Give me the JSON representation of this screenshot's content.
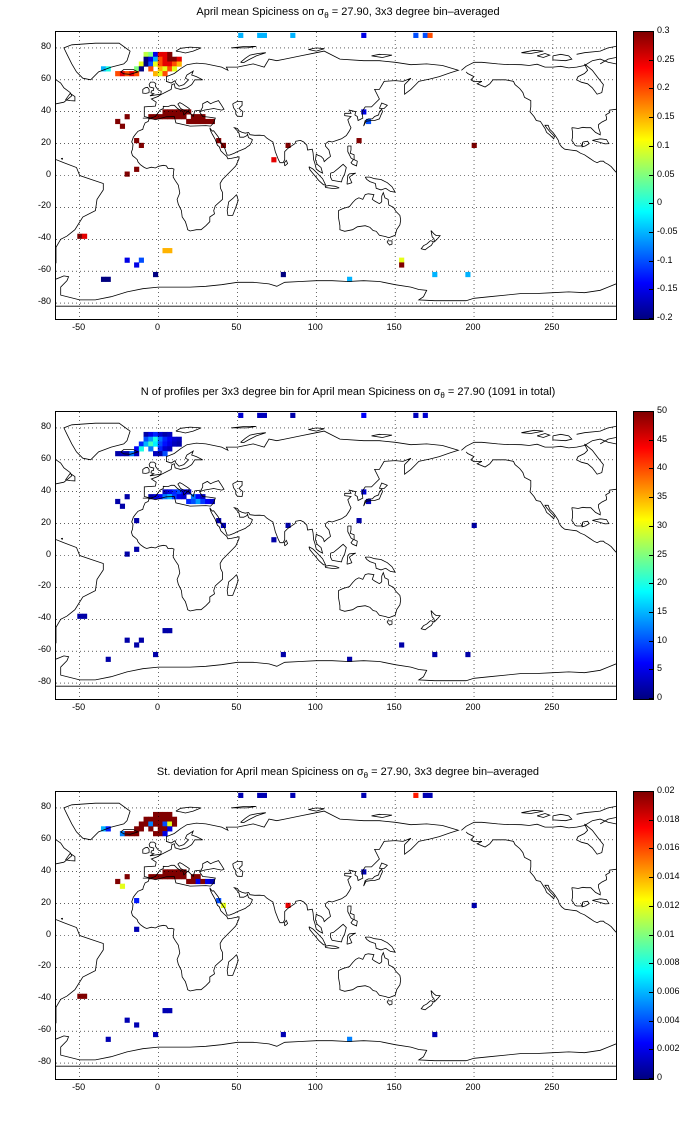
{
  "panels": [
    {
      "title_pre": "April mean Spiciness on σ",
      "title_sub": "θ",
      "title_post": " = 27.90, 3x3 degree bin–averaged",
      "cbar_ticks": [
        "0.3",
        "0.25",
        "0.2",
        "0.15",
        "0.1",
        "0.05",
        "0",
        "-0.05",
        "-0.1",
        "-0.15",
        "-0.2"
      ],
      "cmin": -0.2,
      "cmax": 0.3
    },
    {
      "title_pre": "N of profiles per 3x3 degree bin for April mean Spiciness on σ",
      "title_sub": "θ",
      "title_post": " = 27.90 (1091 in total)",
      "cbar_ticks": [
        "50",
        "45",
        "40",
        "35",
        "30",
        "25",
        "20",
        "15",
        "10",
        "5",
        "0"
      ],
      "cmin": 0,
      "cmax": 50
    },
    {
      "title_pre": "St. deviation for April mean Spiciness on σ",
      "title_sub": "θ",
      "title_post": " = 27.90, 3x3 degree bin–averaged",
      "cbar_ticks": [
        "0.02",
        "0.018",
        "0.016",
        "0.014",
        "0.012",
        "0.01",
        "0.008",
        "0.006",
        "0.004",
        "0.002",
        "0"
      ],
      "cmin": 0,
      "cmax": 0.02
    }
  ],
  "x_ticks": [
    "-50",
    "0",
    "50",
    "100",
    "150",
    "200",
    "250"
  ],
  "y_ticks": [
    "80",
    "60",
    "40",
    "20",
    "0",
    "-20",
    "-40",
    "-60",
    "-80"
  ],
  "map_data": {
    "x_range": [
      -65,
      290
    ],
    "y_range": [
      -90,
      90
    ],
    "panels": [
      [
        [
          -8,
          76,
          0.08
        ],
        [
          -5,
          76,
          0.05
        ],
        [
          -2,
          76,
          -0.15
        ],
        [
          1,
          76,
          0.25
        ],
        [
          4,
          76,
          0.25
        ],
        [
          7,
          76,
          0.3
        ],
        [
          -8,
          73,
          -0.2
        ],
        [
          -5,
          73,
          -0.15
        ],
        [
          -2,
          73,
          -0.05
        ],
        [
          1,
          73,
          0.2
        ],
        [
          4,
          73,
          0.25
        ],
        [
          7,
          73,
          0.3
        ],
        [
          10,
          73,
          0.3
        ],
        [
          13,
          73,
          0.25
        ],
        [
          -11,
          70,
          0.1
        ],
        [
          -8,
          70,
          -0.2
        ],
        [
          -5,
          70,
          -0.1
        ],
        [
          -2,
          70,
          0.1
        ],
        [
          1,
          70,
          0.2
        ],
        [
          4,
          70,
          0.25
        ],
        [
          7,
          70,
          0.25
        ],
        [
          10,
          70,
          0.2
        ],
        [
          13,
          70,
          0.15
        ],
        [
          -14,
          67,
          0.05
        ],
        [
          -11,
          67,
          -0.2
        ],
        [
          -5,
          67,
          0.2
        ],
        [
          1,
          67,
          0.15
        ],
        [
          4,
          67,
          0.1
        ],
        [
          7,
          67,
          0.2
        ],
        [
          10,
          67,
          0.1
        ],
        [
          -2,
          64,
          0.15
        ],
        [
          1,
          64,
          0.1
        ],
        [
          4,
          64,
          0.2
        ],
        [
          -26,
          64,
          0.2
        ],
        [
          -23,
          64,
          0.25
        ],
        [
          -20,
          64,
          0.2
        ],
        [
          -17,
          64,
          0.25
        ],
        [
          -14,
          64,
          0.2
        ],
        [
          -35,
          67,
          -0.05
        ],
        [
          -32,
          67,
          0.0
        ],
        [
          4,
          40,
          0.3
        ],
        [
          7,
          40,
          0.3
        ],
        [
          10,
          40,
          0.3
        ],
        [
          13,
          40,
          0.3
        ],
        [
          16,
          40,
          0.3
        ],
        [
          19,
          40,
          0.3
        ],
        [
          -5,
          37,
          0.3
        ],
        [
          -2,
          37,
          0.3
        ],
        [
          1,
          37,
          0.3
        ],
        [
          4,
          37,
          0.3
        ],
        [
          7,
          37,
          0.3
        ],
        [
          10,
          37,
          0.3
        ],
        [
          13,
          37,
          0.3
        ],
        [
          16,
          37,
          0.3
        ],
        [
          22,
          37,
          0.3
        ],
        [
          25,
          37,
          0.3
        ],
        [
          28,
          37,
          0.3
        ],
        [
          19,
          34,
          0.3
        ],
        [
          22,
          34,
          0.3
        ],
        [
          25,
          34,
          0.3
        ],
        [
          28,
          34,
          0.3
        ],
        [
          31,
          34,
          0.3
        ],
        [
          34,
          34,
          0.3
        ],
        [
          -26,
          34,
          0.3
        ],
        [
          -20,
          37,
          0.3
        ],
        [
          -23,
          31,
          0.3
        ],
        [
          38,
          22,
          0.3
        ],
        [
          41,
          19,
          0.3
        ],
        [
          -14,
          22,
          0.3
        ],
        [
          -14,
          4,
          0.3
        ],
        [
          -20,
          1,
          0.3
        ],
        [
          -11,
          19,
          0.3
        ],
        [
          73,
          10,
          0.25
        ],
        [
          82,
          19,
          0.3
        ],
        [
          130,
          40,
          -0.15
        ],
        [
          133,
          34,
          -0.1
        ],
        [
          127,
          22,
          0.3
        ],
        [
          200,
          19,
          0.3
        ],
        [
          52,
          88,
          -0.05
        ],
        [
          64,
          88,
          -0.05
        ],
        [
          67,
          88,
          -0.05
        ],
        [
          85,
          88,
          -0.05
        ],
        [
          130,
          88,
          -0.15
        ],
        [
          163,
          88,
          -0.1
        ],
        [
          169,
          88,
          -0.1
        ],
        [
          172,
          88,
          0.2
        ],
        [
          -50,
          -38,
          0.3
        ],
        [
          -47,
          -38,
          0.25
        ],
        [
          4,
          -47,
          0.15
        ],
        [
          7,
          -47,
          0.15
        ],
        [
          -20,
          -53,
          -0.15
        ],
        [
          -11,
          -53,
          -0.1
        ],
        [
          -14,
          -56,
          -0.15
        ],
        [
          -32,
          -65,
          -0.2
        ],
        [
          -2,
          -62,
          -0.2
        ],
        [
          79,
          -62,
          -0.2
        ],
        [
          154,
          -53,
          0.1
        ],
        [
          154,
          -56,
          0.3
        ],
        [
          121,
          -65,
          -0.05
        ],
        [
          175,
          -62,
          -0.05
        ],
        [
          196,
          -62,
          -0.05
        ],
        [
          -35,
          -65,
          -0.2
        ]
      ],
      [
        [
          -8,
          76,
          2
        ],
        [
          -5,
          76,
          5
        ],
        [
          -2,
          76,
          8
        ],
        [
          1,
          76,
          4
        ],
        [
          4,
          76,
          2
        ],
        [
          7,
          76,
          3
        ],
        [
          -8,
          73,
          10
        ],
        [
          -5,
          73,
          14
        ],
        [
          -2,
          73,
          20
        ],
        [
          1,
          73,
          12
        ],
        [
          4,
          73,
          8
        ],
        [
          7,
          73,
          6
        ],
        [
          10,
          73,
          4
        ],
        [
          13,
          73,
          3
        ],
        [
          -11,
          70,
          8
        ],
        [
          -8,
          70,
          15
        ],
        [
          -5,
          70,
          22
        ],
        [
          -2,
          70,
          18
        ],
        [
          1,
          70,
          10
        ],
        [
          4,
          70,
          7
        ],
        [
          7,
          70,
          5
        ],
        [
          10,
          70,
          3
        ],
        [
          13,
          70,
          2
        ],
        [
          -14,
          67,
          6
        ],
        [
          -11,
          67,
          20
        ],
        [
          -5,
          67,
          12
        ],
        [
          1,
          67,
          8
        ],
        [
          4,
          67,
          4
        ],
        [
          7,
          67,
          3
        ],
        [
          -2,
          64,
          3
        ],
        [
          1,
          64,
          2
        ],
        [
          4,
          64,
          10
        ],
        [
          -26,
          64,
          2
        ],
        [
          -23,
          64,
          3
        ],
        [
          -20,
          64,
          2
        ],
        [
          -17,
          64,
          12
        ],
        [
          -14,
          64,
          3
        ],
        [
          4,
          40,
          3
        ],
        [
          7,
          40,
          5
        ],
        [
          10,
          40,
          8
        ],
        [
          13,
          40,
          10
        ],
        [
          16,
          40,
          6
        ],
        [
          19,
          40,
          3
        ],
        [
          -5,
          37,
          2
        ],
        [
          -2,
          37,
          4
        ],
        [
          1,
          37,
          6
        ],
        [
          4,
          37,
          12
        ],
        [
          7,
          37,
          15
        ],
        [
          10,
          37,
          9
        ],
        [
          13,
          37,
          5
        ],
        [
          16,
          37,
          4
        ],
        [
          22,
          37,
          12
        ],
        [
          25,
          37,
          6
        ],
        [
          28,
          37,
          3
        ],
        [
          19,
          34,
          8
        ],
        [
          22,
          34,
          10
        ],
        [
          25,
          34,
          14
        ],
        [
          28,
          34,
          9
        ],
        [
          31,
          34,
          6
        ],
        [
          34,
          34,
          4
        ],
        [
          -26,
          34,
          2
        ],
        [
          -20,
          37,
          2
        ],
        [
          -23,
          31,
          2
        ],
        [
          38,
          22,
          2
        ],
        [
          41,
          19,
          3
        ],
        [
          -14,
          22,
          2
        ],
        [
          -14,
          4,
          2
        ],
        [
          -20,
          1,
          2
        ],
        [
          73,
          10,
          2
        ],
        [
          82,
          19,
          2
        ],
        [
          130,
          40,
          4
        ],
        [
          133,
          34,
          3
        ],
        [
          127,
          22,
          2
        ],
        [
          200,
          19,
          2
        ],
        [
          52,
          88,
          4
        ],
        [
          64,
          88,
          3
        ],
        [
          67,
          88,
          3
        ],
        [
          85,
          88,
          2
        ],
        [
          130,
          88,
          6
        ],
        [
          163,
          88,
          3
        ],
        [
          169,
          88,
          4
        ],
        [
          -50,
          -38,
          2
        ],
        [
          -47,
          -38,
          2
        ],
        [
          4,
          -47,
          2
        ],
        [
          7,
          -47,
          2
        ],
        [
          -20,
          -53,
          2
        ],
        [
          -11,
          -53,
          2
        ],
        [
          -14,
          -56,
          2
        ],
        [
          -32,
          -65,
          2
        ],
        [
          -2,
          -62,
          2
        ],
        [
          79,
          -62,
          2
        ],
        [
          154,
          -56,
          2
        ],
        [
          121,
          -65,
          2
        ],
        [
          175,
          -62,
          2
        ],
        [
          196,
          -62,
          2
        ]
      ],
      [
        [
          -2,
          76,
          0.02
        ],
        [
          1,
          76,
          0.02
        ],
        [
          4,
          76,
          0.02
        ],
        [
          7,
          76,
          0.02
        ],
        [
          -8,
          73,
          0.02
        ],
        [
          -5,
          73,
          0.02
        ],
        [
          -2,
          73,
          0.02
        ],
        [
          1,
          73,
          0.02
        ],
        [
          4,
          73,
          0.02
        ],
        [
          7,
          73,
          0.02
        ],
        [
          10,
          73,
          0.02
        ],
        [
          -11,
          70,
          0.02
        ],
        [
          -8,
          70,
          0.02
        ],
        [
          -5,
          70,
          0.005
        ],
        [
          -2,
          70,
          0.02
        ],
        [
          1,
          70,
          0.02
        ],
        [
          4,
          70,
          0.004
        ],
        [
          7,
          70,
          0.012
        ],
        [
          10,
          70,
          0.02
        ],
        [
          -14,
          67,
          0.02
        ],
        [
          -11,
          67,
          0.02
        ],
        [
          -5,
          67,
          0.02
        ],
        [
          1,
          67,
          0.02
        ],
        [
          4,
          67,
          0.02
        ],
        [
          7,
          67,
          0.002
        ],
        [
          -2,
          64,
          0.02
        ],
        [
          1,
          64,
          0.02
        ],
        [
          4,
          64,
          0.002
        ],
        [
          -23,
          64,
          0.005
        ],
        [
          -20,
          64,
          0.02
        ],
        [
          -17,
          64,
          0.02
        ],
        [
          -14,
          64,
          0.02
        ],
        [
          -35,
          67,
          0.006
        ],
        [
          -32,
          67,
          0.003
        ],
        [
          4,
          40,
          0.02
        ],
        [
          7,
          40,
          0.02
        ],
        [
          10,
          40,
          0.02
        ],
        [
          13,
          40,
          0.02
        ],
        [
          16,
          40,
          0.02
        ],
        [
          -5,
          37,
          0.02
        ],
        [
          -2,
          37,
          0.02
        ],
        [
          1,
          37,
          0.02
        ],
        [
          4,
          37,
          0.02
        ],
        [
          7,
          37,
          0.02
        ],
        [
          10,
          37,
          0.02
        ],
        [
          13,
          37,
          0.02
        ],
        [
          16,
          37,
          0.02
        ],
        [
          22,
          37,
          0.02
        ],
        [
          25,
          37,
          0.02
        ],
        [
          19,
          34,
          0.02
        ],
        [
          22,
          34,
          0.02
        ],
        [
          25,
          34,
          0.002
        ],
        [
          28,
          34,
          0.02
        ],
        [
          31,
          34,
          0.002
        ],
        [
          34,
          34,
          0.001
        ],
        [
          -26,
          34,
          0.02
        ],
        [
          -23,
          31,
          0.012
        ],
        [
          -20,
          37,
          0.02
        ],
        [
          38,
          22,
          0.004
        ],
        [
          41,
          19,
          0.012
        ],
        [
          -14,
          22,
          0.003
        ],
        [
          -14,
          4,
          0.001
        ],
        [
          82,
          19,
          0.018
        ],
        [
          200,
          19,
          0.001
        ],
        [
          130,
          40,
          0.001
        ],
        [
          52,
          88,
          0.001
        ],
        [
          64,
          88,
          0.001
        ],
        [
          67,
          88,
          0.001
        ],
        [
          85,
          88,
          0.001
        ],
        [
          130,
          88,
          0.001
        ],
        [
          163,
          88,
          0.017
        ],
        [
          169,
          88,
          0.001
        ],
        [
          172,
          88,
          0.001
        ],
        [
          -50,
          -38,
          0.02
        ],
        [
          -47,
          -38,
          0.02
        ],
        [
          4,
          -47,
          0.001
        ],
        [
          7,
          -47,
          0.001
        ],
        [
          -20,
          -53,
          0.001
        ],
        [
          -14,
          -56,
          0.001
        ],
        [
          -32,
          -65,
          0.001
        ],
        [
          -2,
          -62,
          0.001
        ],
        [
          79,
          -62,
          0.001
        ],
        [
          121,
          -65,
          0.005
        ],
        [
          175,
          -62,
          0.001
        ]
      ]
    ]
  }
}
